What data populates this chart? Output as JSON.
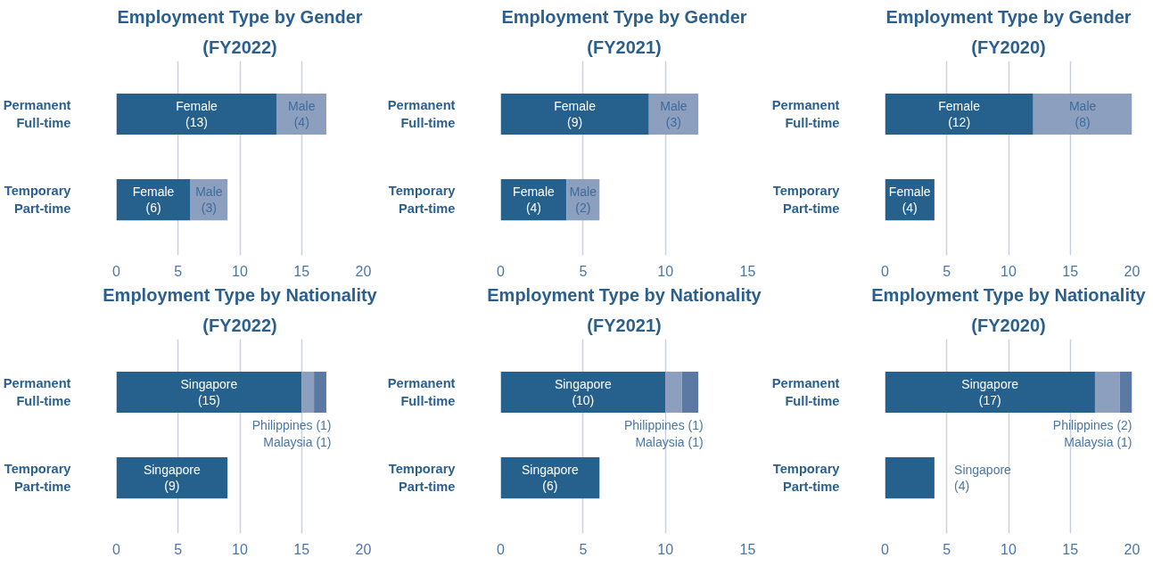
{
  "chart_data": [
    {
      "type": "bar",
      "orientation": "horizontal",
      "stacked": true,
      "title": "Employment Type by Gender",
      "subtitle": "(FY2022)",
      "categories": [
        "Permanent\nFull-time",
        "Temporary\nPart-time"
      ],
      "xlim": [
        0,
        20
      ],
      "xticks": [
        0,
        5,
        10,
        15,
        20
      ],
      "grid": "x",
      "series": [
        {
          "name": "Female",
          "color": "#26618e",
          "values": [
            13,
            6
          ],
          "value_labels": [
            "(13)",
            "(6)"
          ]
        },
        {
          "name": "Male",
          "color": "#8c9fbe",
          "values": [
            4,
            3
          ],
          "value_labels": [
            "(4)",
            "(3)"
          ]
        }
      ]
    },
    {
      "type": "bar",
      "orientation": "horizontal",
      "stacked": true,
      "title": "Employment Type by Gender",
      "subtitle": "(FY2021)",
      "categories": [
        "Permanent\nFull-time",
        "Temporary\nPart-time"
      ],
      "xlim": [
        0,
        15
      ],
      "xticks": [
        0,
        5,
        10,
        15
      ],
      "grid": "x",
      "series": [
        {
          "name": "Female",
          "color": "#26618e",
          "values": [
            9,
            4
          ],
          "value_labels": [
            "(9)",
            "(4)"
          ]
        },
        {
          "name": "Male",
          "color": "#8c9fbe",
          "values": [
            3,
            2
          ],
          "value_labels": [
            "(3)",
            "(2)"
          ]
        }
      ]
    },
    {
      "type": "bar",
      "orientation": "horizontal",
      "stacked": true,
      "title": "Employment Type by Gender",
      "subtitle": "(FY2020)",
      "categories": [
        "Permanent\nFull-time",
        "Temporary\nPart-time"
      ],
      "xlim": [
        0,
        20
      ],
      "xticks": [
        0,
        5,
        10,
        15,
        20
      ],
      "grid": "x",
      "series": [
        {
          "name": "Female",
          "color": "#26618e",
          "values": [
            12,
            4
          ],
          "value_labels": [
            "(12)",
            "(4)"
          ]
        },
        {
          "name": "Male",
          "color": "#8c9fbe",
          "values": [
            8,
            null
          ],
          "value_labels": [
            "(8)",
            null
          ]
        }
      ]
    },
    {
      "type": "bar",
      "orientation": "horizontal",
      "stacked": true,
      "title": "Employment Type by Nationality",
      "subtitle": "(FY2022)",
      "categories": [
        "Permanent\nFull-time",
        "Temporary\nPart-time"
      ],
      "xlim": [
        0,
        20
      ],
      "xticks": [
        0,
        5,
        10,
        15,
        20
      ],
      "grid": "x",
      "series": [
        {
          "name": "Singapore",
          "color": "#26618e",
          "values": [
            15,
            9
          ],
          "value_labels": [
            "(15)",
            "(9)"
          ]
        },
        {
          "name": "Philippines",
          "color": "#8c9fbe",
          "values": [
            1,
            null
          ],
          "value_labels": [
            "(1)",
            null
          ]
        },
        {
          "name": "Malaysia",
          "color": "#5c79a4",
          "values": [
            1,
            null
          ],
          "value_labels": [
            "(1)",
            null
          ]
        }
      ]
    },
    {
      "type": "bar",
      "orientation": "horizontal",
      "stacked": true,
      "title": "Employment Type by Nationality",
      "subtitle": "(FY2021)",
      "categories": [
        "Permanent\nFull-time",
        "Temporary\nPart-time"
      ],
      "xlim": [
        0,
        15
      ],
      "xticks": [
        0,
        5,
        10,
        15
      ],
      "grid": "x",
      "series": [
        {
          "name": "Singapore",
          "color": "#26618e",
          "values": [
            10,
            6
          ],
          "value_labels": [
            "(10)",
            "(6)"
          ]
        },
        {
          "name": "Philippines",
          "color": "#8c9fbe",
          "values": [
            1,
            null
          ],
          "value_labels": [
            "(1)",
            null
          ]
        },
        {
          "name": "Malaysia",
          "color": "#5c79a4",
          "values": [
            1,
            null
          ],
          "value_labels": [
            "(1)",
            null
          ]
        }
      ]
    },
    {
      "type": "bar",
      "orientation": "horizontal",
      "stacked": true,
      "title": "Employment Type by Nationality",
      "subtitle": "(FY2020)",
      "categories": [
        "Permanent\nFull-time",
        "Temporary\nPart-time"
      ],
      "xlim": [
        0,
        20
      ],
      "xticks": [
        0,
        5,
        10,
        15,
        20
      ],
      "grid": "x",
      "series": [
        {
          "name": "Singapore",
          "color": "#26618e",
          "values": [
            17,
            4
          ],
          "value_labels": [
            "(17)",
            "(4)"
          ]
        },
        {
          "name": "Philippines",
          "color": "#8c9fbe",
          "values": [
            2,
            null
          ],
          "value_labels": [
            "(2)",
            null
          ]
        },
        {
          "name": "Malaysia",
          "color": "#5c79a4",
          "values": [
            1,
            null
          ],
          "value_labels": [
            "(1)",
            null
          ]
        }
      ]
    }
  ]
}
